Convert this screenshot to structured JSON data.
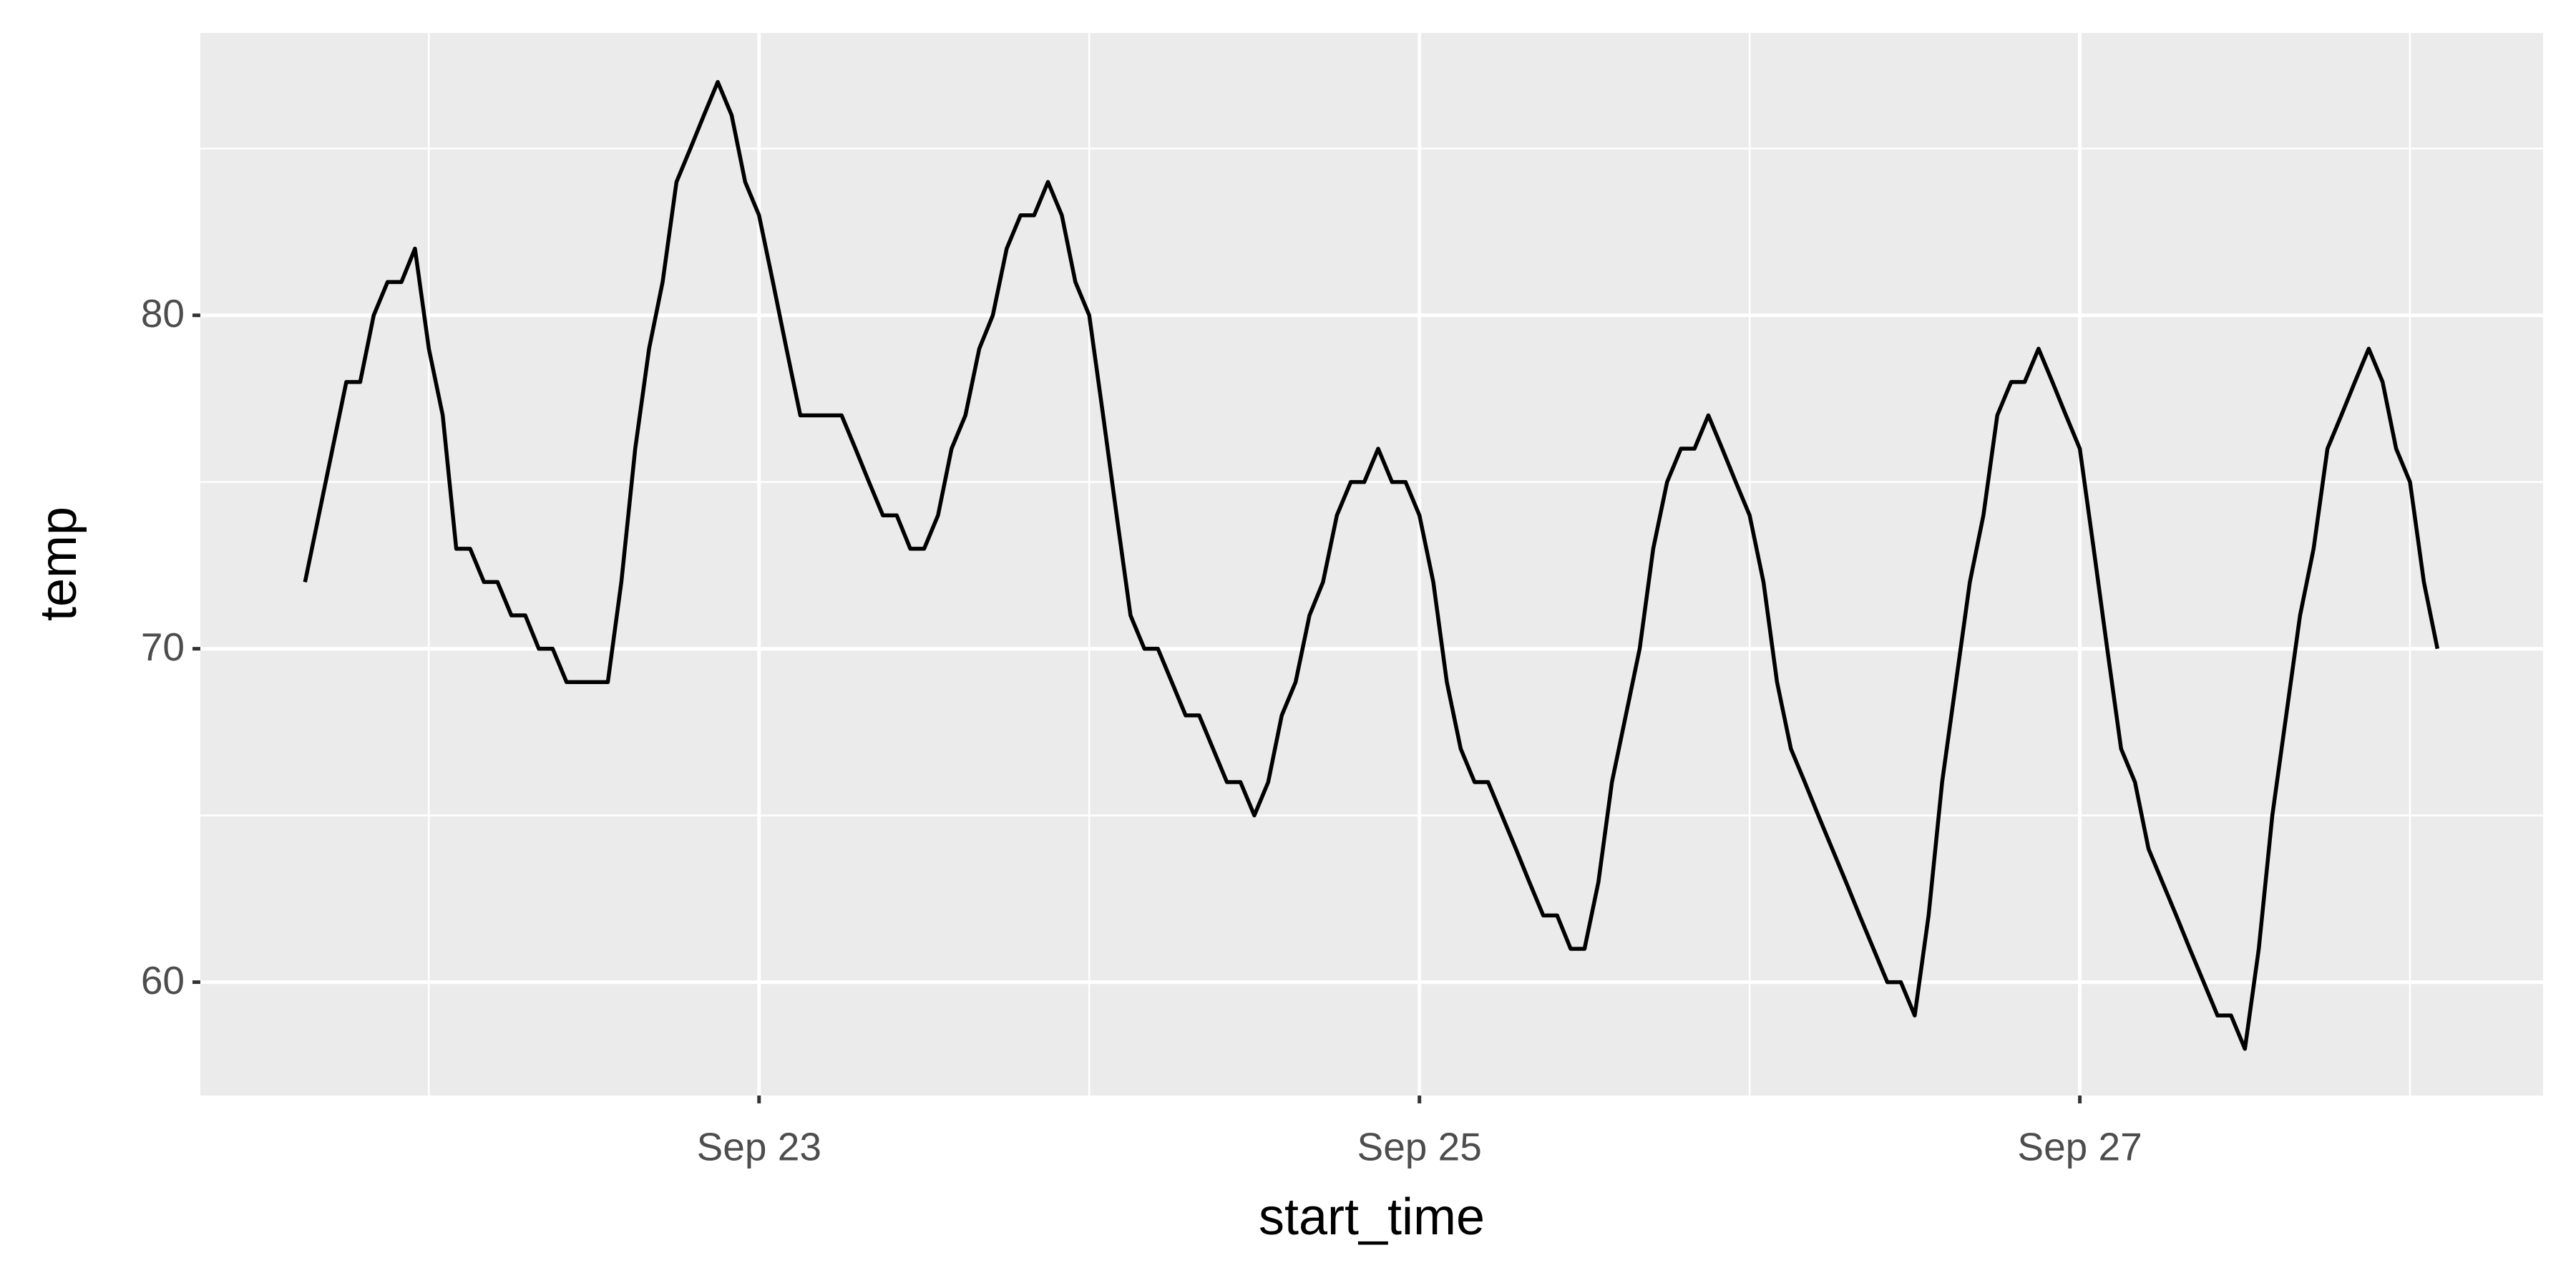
{
  "chart_data": {
    "type": "line",
    "xlabel": "start_time",
    "ylabel": "temp",
    "x": [
      21.625,
      21.75,
      21.792,
      21.833,
      21.875,
      21.917,
      21.958,
      22,
      22.042,
      22.083,
      22.125,
      22.167,
      22.208,
      22.25,
      22.292,
      22.333,
      22.375,
      22.417,
      22.458,
      22.5,
      22.542,
      22.583,
      22.625,
      22.667,
      22.708,
      22.75,
      22.792,
      22.833,
      22.875,
      22.917,
      22.958,
      23,
      23.042,
      23.083,
      23.125,
      23.167,
      23.208,
      23.25,
      23.292,
      23.333,
      23.375,
      23.417,
      23.458,
      23.5,
      23.542,
      23.583,
      23.625,
      23.667,
      23.708,
      23.75,
      23.792,
      23.833,
      23.875,
      23.917,
      23.958,
      24,
      24.042,
      24.083,
      24.125,
      24.167,
      24.208,
      24.25,
      24.292,
      24.333,
      24.375,
      24.417,
      24.458,
      24.5,
      24.542,
      24.583,
      24.625,
      24.667,
      24.708,
      24.75,
      24.792,
      24.833,
      24.875,
      24.917,
      24.958,
      25,
      25.042,
      25.083,
      25.125,
      25.167,
      25.208,
      25.25,
      25.292,
      25.333,
      25.375,
      25.417,
      25.458,
      25.5,
      25.542,
      25.583,
      25.625,
      25.667,
      25.708,
      25.75,
      25.792,
      25.833,
      25.875,
      25.917,
      25.958,
      26,
      26.042,
      26.083,
      26.125,
      26.167,
      26.208,
      26.25,
      26.292,
      26.333,
      26.375,
      26.417,
      26.458,
      26.5,
      26.542,
      26.583,
      26.625,
      26.667,
      26.708,
      26.75,
      26.792,
      26.833,
      26.875,
      26.917,
      26.958,
      27,
      27.042,
      27.083,
      27.125,
      27.167,
      27.208,
      27.25,
      27.292,
      27.333,
      27.375,
      27.417,
      27.458,
      27.5,
      27.542,
      27.583,
      27.625,
      27.667,
      27.708,
      27.75,
      27.792,
      27.833,
      27.875,
      27.917,
      27.958,
      28,
      28.042,
      28.083
    ],
    "series": [
      {
        "color": "#000000",
        "values": [
          72,
          78,
          78,
          80,
          81,
          81,
          82,
          79,
          77,
          73,
          73,
          72,
          72,
          71,
          71,
          70,
          70,
          69,
          69,
          69,
          69,
          72,
          76,
          79,
          81,
          84,
          85,
          86,
          87,
          86,
          84,
          83,
          81,
          79,
          77,
          77,
          77,
          77,
          76,
          75,
          74,
          74,
          73,
          73,
          74,
          76,
          77,
          79,
          80,
          82,
          83,
          83,
          84,
          83,
          81,
          80,
          77,
          74,
          71,
          70,
          70,
          69,
          68,
          68,
          67,
          66,
          66,
          65,
          66,
          68,
          69,
          71,
          72,
          74,
          75,
          75,
          76,
          75,
          75,
          74,
          72,
          69,
          67,
          66,
          66,
          65,
          64,
          63,
          62,
          62,
          61,
          61,
          63,
          66,
          68,
          70,
          73,
          75,
          76,
          76,
          77,
          76,
          75,
          74,
          72,
          69,
          67,
          66,
          65,
          64,
          63,
          62,
          61,
          60,
          60,
          59,
          62,
          66,
          69,
          72,
          74,
          77,
          78,
          78,
          79,
          78,
          77,
          76,
          73,
          70,
          67,
          66,
          64,
          63,
          62,
          61,
          60,
          59,
          59,
          58,
          61,
          65,
          68,
          71,
          73,
          76,
          77,
          78,
          79,
          78,
          76,
          75,
          72,
          70
        ]
      }
    ],
    "xlim": [
      21.308,
      28.403
    ],
    "xticks": [
      {
        "value": 23,
        "label": "Sep 23"
      },
      {
        "value": 25,
        "label": "Sep 25"
      },
      {
        "value": 27,
        "label": "Sep 27"
      }
    ],
    "minor_xticks": [
      22,
      24,
      26,
      28
    ],
    "ylim": [
      56.6,
      88.47
    ],
    "yticks": [
      60,
      70,
      80
    ],
    "minor_yticks": [
      65,
      75,
      85
    ],
    "grid": true,
    "panel_color": "#ebebeb",
    "grid_color": "#ffffff"
  }
}
